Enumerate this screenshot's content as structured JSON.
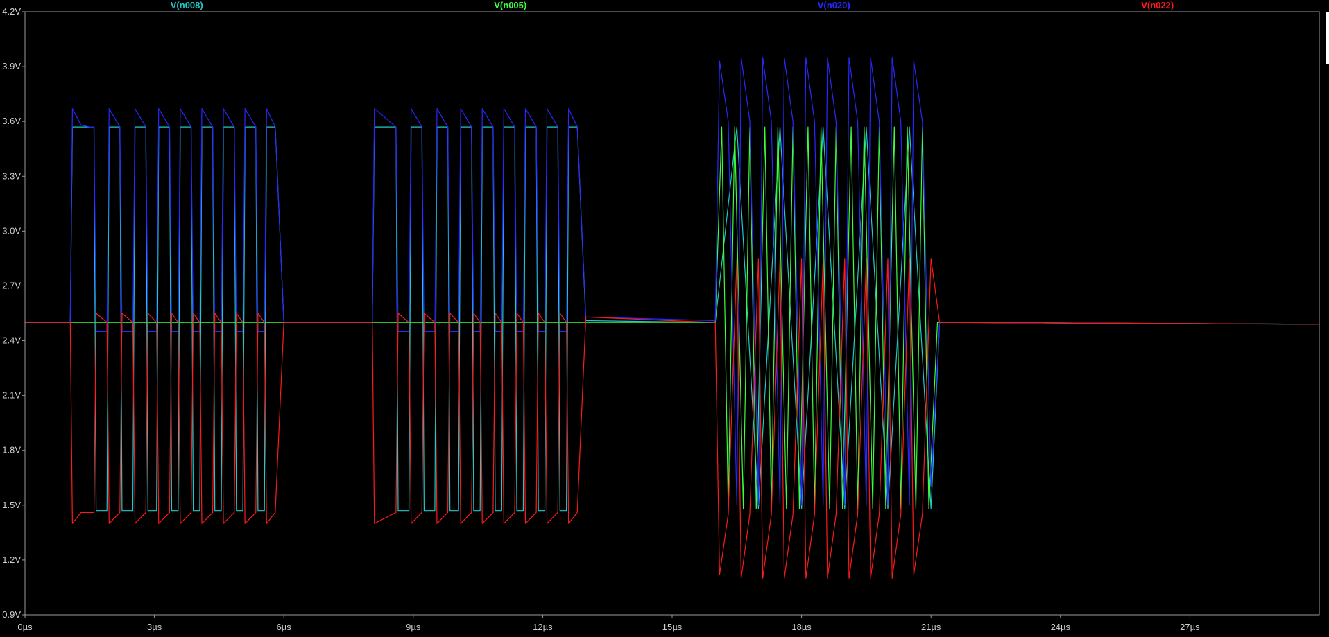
{
  "chart_data": {
    "type": "line",
    "title": "",
    "xlabel": "",
    "ylabel": "",
    "x_unit": "µs",
    "y_unit": "V",
    "xlim": [
      0,
      30
    ],
    "ylim": [
      0.9,
      4.2
    ],
    "grid": false,
    "background_color": "#000000",
    "axis_color": "#9a9a9a",
    "x_ticks": [
      0,
      3,
      6,
      9,
      12,
      15,
      18,
      21,
      24,
      27
    ],
    "x_tick_labels": [
      "0µs",
      "3µs",
      "6µs",
      "9µs",
      "12µs",
      "15µs",
      "18µs",
      "21µs",
      "24µs",
      "27µs"
    ],
    "y_ticks": [
      0.9,
      1.2,
      1.5,
      1.8,
      2.1,
      2.4,
      2.7,
      3.0,
      3.3,
      3.6,
      3.9,
      4.2
    ],
    "y_tick_labels": [
      "0.9V",
      "1.2V",
      "1.5V",
      "1.8V",
      "2.1V",
      "2.4V",
      "2.7V",
      "3.0V",
      "3.3V",
      "3.6V",
      "3.9V",
      "4.2V"
    ],
    "legend_placement": "top",
    "series": [
      {
        "name": "V(n008)",
        "color": "#22c8c8",
        "x": [
          0,
          1.05,
          1.1,
          1.6,
          1.65,
          1.9,
          1.95,
          2.2,
          2.25,
          2.5,
          2.55,
          2.8,
          2.85,
          3.05,
          3.1,
          3.35,
          3.4,
          3.55,
          3.6,
          3.85,
          3.9,
          4.05,
          4.1,
          4.35,
          4.4,
          4.55,
          4.6,
          4.85,
          4.9,
          5.05,
          5.1,
          5.35,
          5.4,
          5.55,
          5.6,
          5.8,
          6.0,
          8.05,
          8.1,
          8.6,
          8.65,
          8.9,
          8.95,
          9.2,
          9.25,
          9.5,
          9.55,
          9.8,
          9.85,
          10.05,
          10.1,
          10.35,
          10.4,
          10.55,
          10.6,
          10.85,
          10.9,
          11.05,
          11.1,
          11.35,
          11.4,
          11.55,
          11.6,
          11.85,
          11.9,
          12.05,
          12.1,
          12.35,
          12.4,
          12.55,
          12.6,
          12.8,
          13.0,
          16.0,
          16.5,
          17.0,
          17.5,
          18.0,
          18.5,
          19.0,
          19.5,
          20.0,
          20.5,
          21.0,
          21.2,
          30
        ],
        "y": [
          2.5,
          2.5,
          3.57,
          3.57,
          1.47,
          1.47,
          3.57,
          3.57,
          1.47,
          1.47,
          3.57,
          3.57,
          1.47,
          1.47,
          3.57,
          3.57,
          1.47,
          1.47,
          3.57,
          3.57,
          1.47,
          1.47,
          3.57,
          3.57,
          1.47,
          1.47,
          3.57,
          3.57,
          1.47,
          1.47,
          3.57,
          3.57,
          1.47,
          1.47,
          3.57,
          3.57,
          2.5,
          2.5,
          3.57,
          3.57,
          1.47,
          1.47,
          3.57,
          3.57,
          1.47,
          1.47,
          3.57,
          3.57,
          1.47,
          1.47,
          3.57,
          3.57,
          1.47,
          1.47,
          3.57,
          3.57,
          1.47,
          1.47,
          3.57,
          3.57,
          1.47,
          1.47,
          3.57,
          3.57,
          1.47,
          1.47,
          3.57,
          3.57,
          1.47,
          1.47,
          3.57,
          3.57,
          2.51,
          2.5,
          3.57,
          1.48,
          3.57,
          1.48,
          3.57,
          1.48,
          3.57,
          1.48,
          3.57,
          1.48,
          2.5,
          2.49
        ]
      },
      {
        "name": "V(n005)",
        "color": "#3cff3c",
        "x": [
          0,
          16.0,
          16.15,
          16.3,
          16.45,
          16.65,
          16.8,
          16.95,
          17.15,
          17.3,
          17.45,
          17.65,
          17.8,
          17.95,
          18.15,
          18.3,
          18.45,
          18.65,
          18.8,
          18.95,
          19.15,
          19.3,
          19.45,
          19.65,
          19.8,
          19.95,
          20.15,
          20.3,
          20.45,
          20.65,
          20.8,
          20.95,
          21.15,
          30
        ],
        "y": [
          2.5,
          2.5,
          3.57,
          1.48,
          3.57,
          1.48,
          3.57,
          1.48,
          3.57,
          1.48,
          3.57,
          1.48,
          3.57,
          1.48,
          3.57,
          1.48,
          3.57,
          1.48,
          3.57,
          1.48,
          3.57,
          1.48,
          3.57,
          1.48,
          3.57,
          1.48,
          3.57,
          1.48,
          3.57,
          1.48,
          3.57,
          1.48,
          2.5,
          2.49
        ]
      },
      {
        "name": "V(n020)",
        "color": "#2828ff",
        "x": [
          0,
          1.05,
          1.1,
          1.3,
          1.5,
          1.6,
          1.65,
          1.9,
          1.95,
          2.2,
          2.25,
          2.5,
          2.55,
          2.8,
          2.85,
          3.05,
          3.1,
          3.35,
          3.4,
          3.55,
          3.6,
          3.85,
          3.9,
          4.05,
          4.1,
          4.35,
          4.4,
          4.55,
          4.6,
          4.85,
          4.9,
          5.05,
          5.1,
          5.35,
          5.4,
          5.55,
          5.6,
          5.8,
          6.0,
          8.05,
          8.1,
          8.6,
          8.65,
          8.9,
          8.95,
          9.2,
          9.25,
          9.5,
          9.55,
          9.8,
          9.85,
          10.05,
          10.1,
          10.35,
          10.4,
          10.55,
          10.6,
          10.85,
          10.9,
          11.05,
          11.1,
          11.35,
          11.4,
          11.55,
          11.6,
          11.85,
          11.9,
          12.05,
          12.1,
          12.35,
          12.4,
          12.55,
          12.6,
          12.8,
          13.0,
          16.0,
          16.1,
          16.3,
          16.5,
          16.6,
          16.8,
          17.0,
          17.1,
          17.3,
          17.5,
          17.6,
          17.8,
          18.0,
          18.1,
          18.3,
          18.5,
          18.6,
          18.8,
          19.0,
          19.1,
          19.3,
          19.5,
          19.6,
          19.8,
          20.0,
          20.1,
          20.3,
          20.5,
          20.6,
          20.8,
          21.0,
          21.2,
          30
        ],
        "y": [
          2.5,
          2.5,
          3.67,
          3.58,
          3.57,
          3.57,
          2.45,
          2.45,
          3.67,
          3.57,
          2.45,
          2.45,
          3.67,
          3.57,
          2.45,
          2.45,
          3.67,
          3.57,
          2.45,
          2.45,
          3.67,
          3.57,
          2.45,
          2.45,
          3.67,
          3.57,
          2.45,
          2.45,
          3.67,
          3.57,
          2.45,
          2.45,
          3.67,
          3.57,
          2.45,
          2.45,
          3.67,
          3.57,
          2.5,
          2.5,
          3.67,
          3.57,
          2.45,
          2.45,
          3.67,
          3.57,
          2.45,
          2.45,
          3.67,
          3.57,
          2.45,
          2.45,
          3.67,
          3.57,
          2.45,
          2.45,
          3.67,
          3.57,
          2.45,
          2.45,
          3.67,
          3.57,
          2.45,
          2.45,
          3.67,
          3.57,
          2.45,
          2.45,
          3.67,
          3.57,
          2.45,
          2.45,
          3.67,
          3.57,
          2.53,
          2.51,
          3.93,
          3.6,
          1.5,
          3.95,
          3.6,
          1.5,
          3.95,
          3.6,
          1.5,
          3.95,
          3.6,
          1.5,
          3.95,
          3.6,
          1.5,
          3.95,
          3.6,
          1.5,
          3.95,
          3.6,
          1.5,
          3.95,
          3.6,
          1.5,
          3.95,
          3.6,
          1.5,
          3.93,
          3.6,
          1.6,
          2.5,
          2.49
        ]
      },
      {
        "name": "V(n022)",
        "color": "#ff1a1a",
        "x": [
          0,
          1.05,
          1.1,
          1.3,
          1.5,
          1.6,
          1.65,
          1.9,
          1.95,
          2.2,
          2.25,
          2.5,
          2.55,
          2.8,
          2.85,
          3.05,
          3.1,
          3.35,
          3.4,
          3.55,
          3.6,
          3.85,
          3.9,
          4.05,
          4.1,
          4.35,
          4.4,
          4.55,
          4.6,
          4.85,
          4.9,
          5.05,
          5.1,
          5.35,
          5.4,
          5.55,
          5.6,
          5.8,
          6.0,
          8.05,
          8.1,
          8.6,
          8.65,
          8.9,
          8.95,
          9.2,
          9.25,
          9.5,
          9.55,
          9.8,
          9.85,
          10.05,
          10.1,
          10.35,
          10.4,
          10.55,
          10.6,
          10.85,
          10.9,
          11.05,
          11.1,
          11.35,
          11.4,
          11.55,
          11.6,
          11.85,
          11.9,
          12.05,
          12.1,
          12.35,
          12.4,
          12.55,
          12.6,
          12.8,
          13.0,
          16.0,
          16.1,
          16.3,
          16.5,
          16.6,
          16.8,
          17.0,
          17.1,
          17.3,
          17.5,
          17.6,
          17.8,
          18.0,
          18.1,
          18.3,
          18.5,
          18.6,
          18.8,
          19.0,
          19.1,
          19.3,
          19.5,
          19.6,
          19.8,
          20.0,
          20.1,
          20.3,
          20.5,
          20.6,
          20.8,
          21.0,
          21.2,
          30
        ],
        "y": [
          2.5,
          2.5,
          1.4,
          1.46,
          1.46,
          1.46,
          2.55,
          2.5,
          1.4,
          1.46,
          2.55,
          2.5,
          1.4,
          1.46,
          2.55,
          2.5,
          1.4,
          1.46,
          2.55,
          2.5,
          1.4,
          1.46,
          2.55,
          2.5,
          1.4,
          1.46,
          2.55,
          2.5,
          1.4,
          1.46,
          2.55,
          2.5,
          1.4,
          1.46,
          2.55,
          2.5,
          1.4,
          1.46,
          2.5,
          2.5,
          1.4,
          1.46,
          2.55,
          2.5,
          1.4,
          1.46,
          2.55,
          2.5,
          1.4,
          1.46,
          2.55,
          2.5,
          1.4,
          1.46,
          2.55,
          2.5,
          1.4,
          1.46,
          2.55,
          2.5,
          1.4,
          1.46,
          2.55,
          2.5,
          1.4,
          1.46,
          2.55,
          2.5,
          1.4,
          1.46,
          2.55,
          2.5,
          1.4,
          1.46,
          2.53,
          2.5,
          1.12,
          1.45,
          2.85,
          1.1,
          1.45,
          2.85,
          1.1,
          1.45,
          2.85,
          1.1,
          1.45,
          2.85,
          1.1,
          1.45,
          2.85,
          1.1,
          1.45,
          2.85,
          1.1,
          1.45,
          2.85,
          1.1,
          1.45,
          2.85,
          1.1,
          1.45,
          2.85,
          1.12,
          1.45,
          2.85,
          2.5,
          2.49
        ]
      }
    ]
  }
}
